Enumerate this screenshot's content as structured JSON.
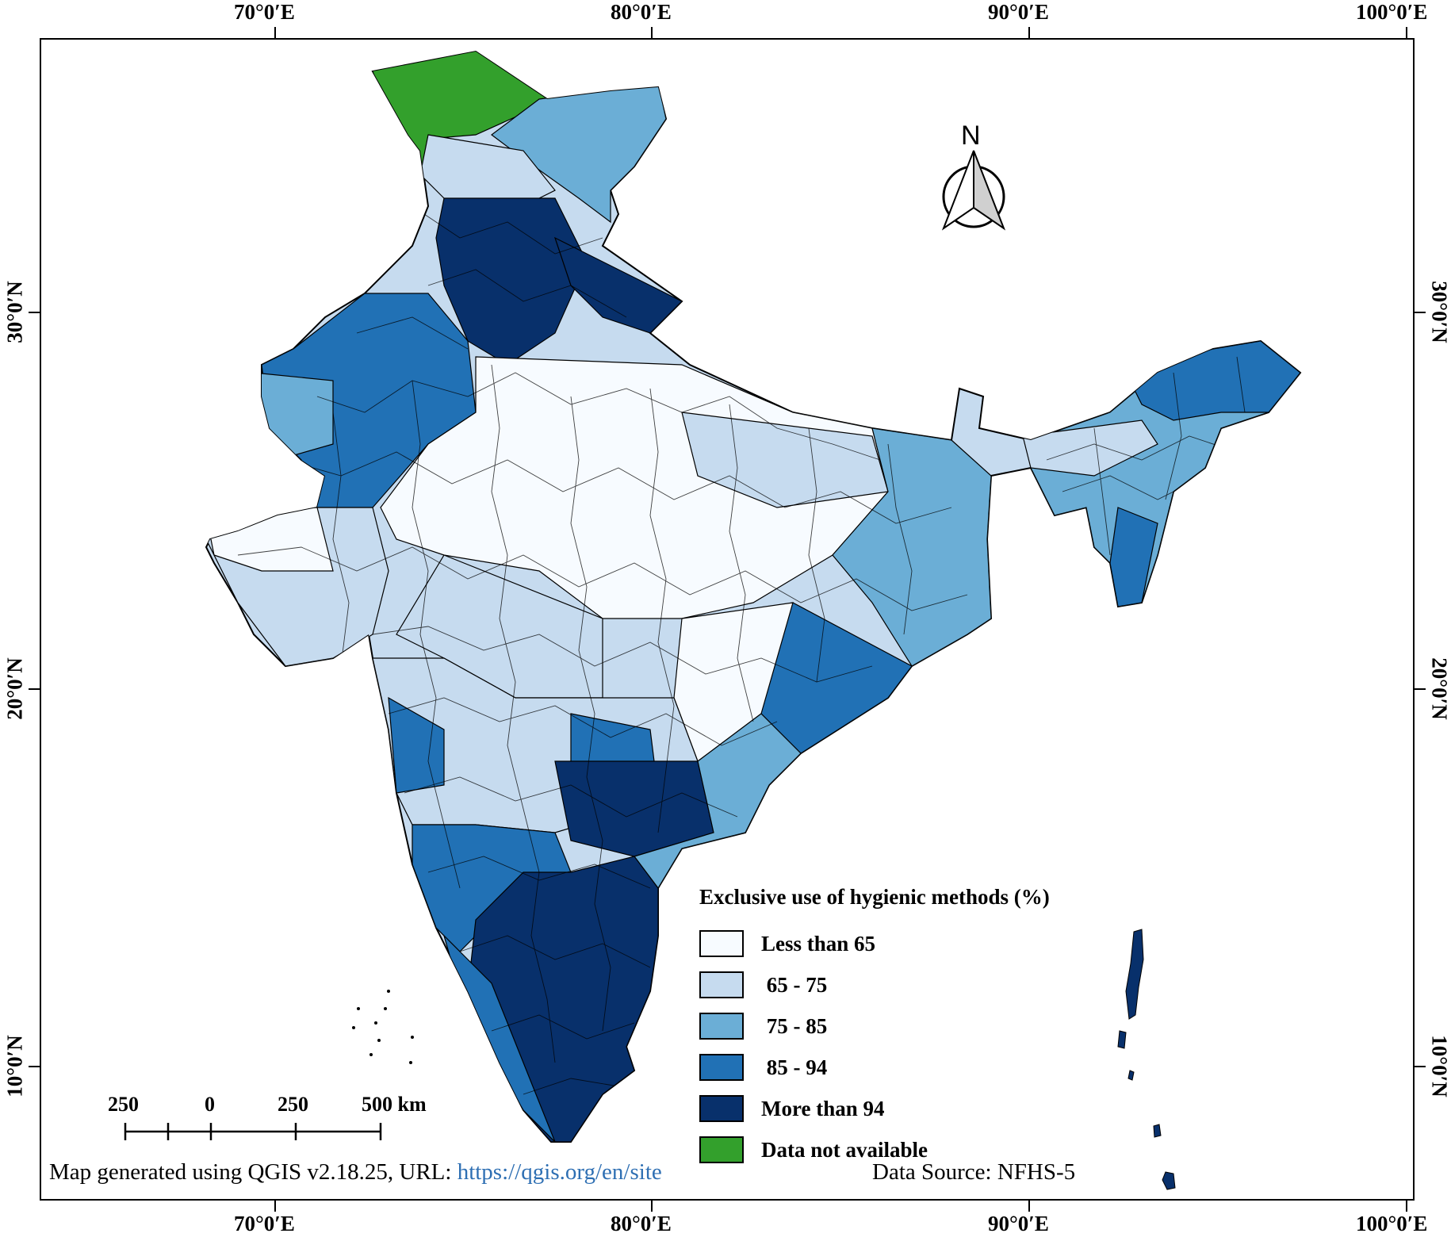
{
  "axes": {
    "lon_top": [
      "70°0′E",
      "80°0′E",
      "90°0′E",
      "100°0′E"
    ],
    "lon_bottom": [
      "70°0′E",
      "80°0′E",
      "90°0′E",
      "100°0′E"
    ],
    "lat_left": [
      "30°0′N",
      "20°0′N",
      "10°0′N"
    ],
    "lat_right": [
      "30°0′N",
      "20°0′N",
      "10°0′N"
    ]
  },
  "north_arrow": {
    "label": "N",
    "icon": "north-arrow-icon"
  },
  "legend": {
    "title": "Exclusive use of hygienic methods (%)",
    "items": [
      {
        "label": "Less than 65",
        "color": "#f7fbff"
      },
      {
        "label": " 65 - 75",
        "color": "#c6dbef"
      },
      {
        "label": " 75 - 85",
        "color": "#6baed6"
      },
      {
        "label": " 85 - 94",
        "color": "#2171b5"
      },
      {
        "label": "More than 94",
        "color": "#08306b"
      },
      {
        "label": "Data not available",
        "color": "#33a02c"
      }
    ]
  },
  "scale_bar": {
    "labels": [
      "250",
      "0",
      "250",
      "500 km"
    ]
  },
  "credit": {
    "text": "Map generated using QGIS v2.18.25, URL: ",
    "url": "https://qgis.org/en/site"
  },
  "source": "Data Source: NFHS-5"
}
